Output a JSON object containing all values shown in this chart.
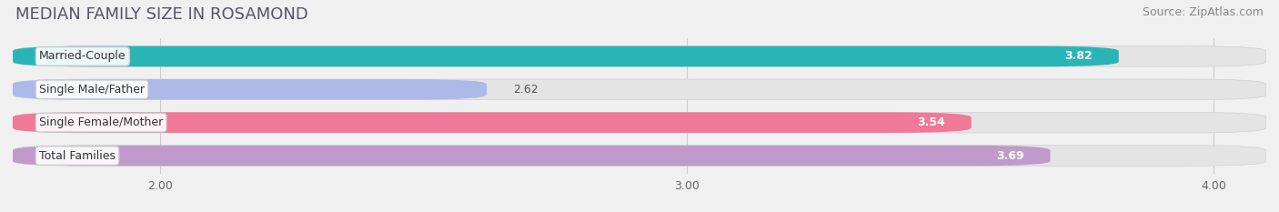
{
  "title": "MEDIAN FAMILY SIZE IN ROSAMOND",
  "source": "Source: ZipAtlas.com",
  "categories": [
    "Married-Couple",
    "Single Male/Father",
    "Single Female/Mother",
    "Total Families"
  ],
  "values": [
    3.82,
    2.62,
    3.54,
    3.69
  ],
  "bar_colors": [
    "#29b5b5",
    "#adb9e8",
    "#f07898",
    "#c09aca"
  ],
  "label_colors": [
    "white",
    "#666666",
    "white",
    "white"
  ],
  "x_min": 1.72,
  "x_max": 4.1,
  "x_ticks": [
    2.0,
    3.0,
    4.0
  ],
  "x_tick_labels": [
    "2.00",
    "3.00",
    "4.00"
  ],
  "title_fontsize": 13,
  "source_fontsize": 9,
  "label_fontsize": 9,
  "value_fontsize": 9,
  "background_color": "#f0f0f0",
  "bar_background_color": "#e4e4e4"
}
